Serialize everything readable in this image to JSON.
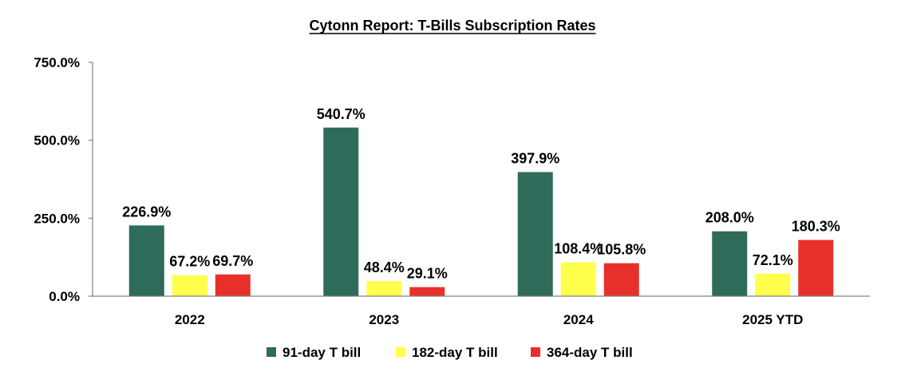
{
  "chart_data": {
    "type": "bar",
    "title": "Cytonn Report: T-Bills Subscription Rates",
    "categories": [
      "2022",
      "2023",
      "2024",
      "2025 YTD"
    ],
    "series": [
      {
        "name": "91-day T bill",
        "color": "#2E6B5B",
        "values": [
          226.9,
          540.7,
          397.9,
          208.0
        ],
        "labels": [
          "226.9%",
          "540.7%",
          "397.9%",
          "208.0%"
        ]
      },
      {
        "name": "182-day T bill",
        "color": "#FFFF4D",
        "values": [
          67.2,
          48.4,
          108.4,
          72.1
        ],
        "labels": [
          "67.2%",
          "48.4%",
          "108.4%",
          "72.1%"
        ]
      },
      {
        "name": "364-day T bill",
        "color": "#E8302A",
        "values": [
          69.7,
          29.1,
          105.8,
          180.3
        ],
        "labels": [
          "69.7%",
          "29.1%",
          "105.8%",
          "180.3%"
        ]
      }
    ],
    "ylim": [
      0,
      750
    ],
    "yticks": [
      0,
      250,
      500,
      750
    ],
    "ytick_labels": [
      "0.0%",
      "250.0%",
      "500.0%",
      "750.0%"
    ],
    "xlabel": "",
    "ylabel": "",
    "grid": false,
    "legend_position": "bottom"
  }
}
